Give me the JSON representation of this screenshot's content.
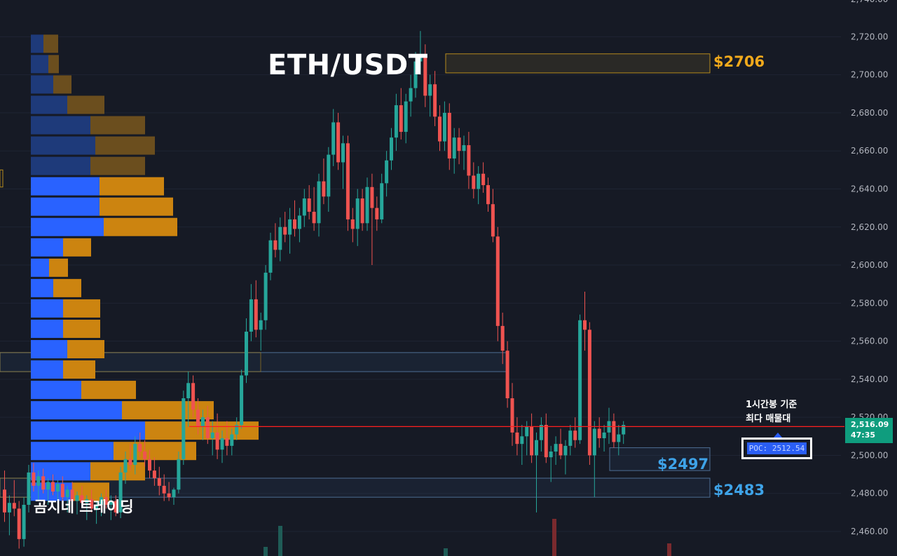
{
  "header": {
    "title": "ETH/USDT"
  },
  "watermark": "곰지네 트레이딩",
  "annotations": {
    "level_high": "$2706",
    "level_mid": "$2497",
    "level_low": "$2483",
    "note_line1": "1시간봉 기준",
    "note_line2": "최다 매물대"
  },
  "price_scale": {
    "current_price": "2,516.09",
    "countdown": "47:35",
    "poc_label": "POC: 2512.54"
  },
  "colors": {
    "background": "#161a25",
    "up": "#26a69a",
    "down": "#ef5350",
    "buy_volume": "#2962ff",
    "sell_volume": "#f0a91c",
    "poc_line": "#ff1f1f",
    "current_price_bg": "#0f9d7e"
  },
  "chart_data": {
    "type": "candlestick",
    "symbol": "ETH/USDT",
    "timeframe": "1h",
    "ylim": [
      2450,
      2745
    ],
    "y_ticks": [
      2460,
      2480,
      2500,
      2520,
      2540,
      2560,
      2580,
      2600,
      2620,
      2640,
      2660,
      2680,
      2700,
      2720
    ],
    "y_tick_labels": [
      "2,460.00",
      "2,480.00",
      "2,500.00",
      "2,520.00",
      "2,540.00",
      "2,560.00",
      "2,580.00",
      "2,600.00",
      "2,620.00",
      "2,640.00",
      "2,660.00",
      "2,680.00",
      "2,700.00",
      "2,720.00"
    ],
    "candles": [
      [
        2482,
        2492,
        2465,
        2470
      ],
      [
        2470,
        2479,
        2458,
        2475
      ],
      [
        2475,
        2487,
        2468,
        2472
      ],
      [
        2472,
        2476,
        2451,
        2456
      ],
      [
        2456,
        2478,
        2452,
        2474
      ],
      [
        2474,
        2495,
        2470,
        2491
      ],
      [
        2491,
        2496,
        2481,
        2484
      ],
      [
        2484,
        2492,
        2476,
        2489
      ],
      [
        2489,
        2493,
        2480,
        2482
      ],
      [
        2482,
        2488,
        2474,
        2486
      ],
      [
        2486,
        2490,
        2479,
        2481
      ],
      [
        2481,
        2487,
        2472,
        2485
      ],
      [
        2485,
        2489,
        2476,
        2478
      ],
      [
        2478,
        2484,
        2470,
        2482
      ],
      [
        2482,
        2486,
        2474,
        2476
      ],
      [
        2476,
        2481,
        2469,
        2479
      ],
      [
        2479,
        2484,
        2473,
        2475
      ],
      [
        2475,
        2479,
        2466,
        2477
      ],
      [
        2477,
        2482,
        2470,
        2472
      ],
      [
        2472,
        2476,
        2464,
        2474
      ],
      [
        2474,
        2480,
        2468,
        2478
      ],
      [
        2478,
        2482,
        2472,
        2474
      ],
      [
        2474,
        2479,
        2466,
        2476
      ],
      [
        2476,
        2479,
        2468,
        2470
      ],
      [
        2470,
        2494,
        2467,
        2491
      ],
      [
        2491,
        2502,
        2485,
        2498
      ],
      [
        2498,
        2506,
        2492,
        2495
      ],
      [
        2495,
        2510,
        2490,
        2506
      ],
      [
        2506,
        2512,
        2499,
        2502
      ],
      [
        2502,
        2508,
        2494,
        2498
      ],
      [
        2498,
        2503,
        2488,
        2492
      ],
      [
        2492,
        2499,
        2484,
        2488
      ],
      [
        2488,
        2494,
        2479,
        2484
      ],
      [
        2484,
        2490,
        2476,
        2480
      ],
      [
        2480,
        2486,
        2476,
        2478
      ],
      [
        2478,
        2483,
        2474,
        2482
      ],
      [
        2482,
        2502,
        2480,
        2498
      ],
      [
        2498,
        2534,
        2495,
        2530
      ],
      [
        2530,
        2544,
        2515,
        2538
      ],
      [
        2538,
        2542,
        2520,
        2524
      ],
      [
        2524,
        2530,
        2511,
        2515
      ],
      [
        2515,
        2524,
        2508,
        2520
      ],
      [
        2520,
        2526,
        2506,
        2509
      ],
      [
        2509,
        2518,
        2500,
        2512
      ],
      [
        2512,
        2522,
        2498,
        2503
      ],
      [
        2503,
        2513,
        2496,
        2509
      ],
      [
        2509,
        2518,
        2500,
        2505
      ],
      [
        2505,
        2514,
        2500,
        2511
      ],
      [
        2511,
        2520,
        2508,
        2516
      ],
      [
        2516,
        2545,
        2514,
        2542
      ],
      [
        2542,
        2572,
        2538,
        2565
      ],
      [
        2565,
        2590,
        2560,
        2582
      ],
      [
        2582,
        2592,
        2562,
        2566
      ],
      [
        2566,
        2575,
        2555,
        2571
      ],
      [
        2571,
        2600,
        2566,
        2596
      ],
      [
        2596,
        2617,
        2592,
        2613
      ],
      [
        2613,
        2622,
        2604,
        2608
      ],
      [
        2608,
        2625,
        2602,
        2620
      ],
      [
        2620,
        2628,
        2612,
        2616
      ],
      [
        2616,
        2630,
        2606,
        2624
      ],
      [
        2624,
        2634,
        2615,
        2619
      ],
      [
        2619,
        2630,
        2612,
        2626
      ],
      [
        2626,
        2640,
        2620,
        2635
      ],
      [
        2635,
        2642,
        2624,
        2628
      ],
      [
        2628,
        2641,
        2618,
        2622
      ],
      [
        2622,
        2648,
        2615,
        2644
      ],
      [
        2644,
        2656,
        2632,
        2636
      ],
      [
        2636,
        2662,
        2628,
        2658
      ],
      [
        2658,
        2682,
        2652,
        2675
      ],
      [
        2675,
        2680,
        2650,
        2654
      ],
      [
        2654,
        2668,
        2640,
        2664
      ],
      [
        2664,
        2668,
        2618,
        2624
      ],
      [
        2624,
        2630,
        2612,
        2619
      ],
      [
        2619,
        2640,
        2610,
        2635
      ],
      [
        2635,
        2640,
        2618,
        2622
      ],
      [
        2622,
        2646,
        2618,
        2641
      ],
      [
        2641,
        2648,
        2600,
        2630
      ],
      [
        2630,
        2636,
        2618,
        2624
      ],
      [
        2624,
        2648,
        2622,
        2643
      ],
      [
        2643,
        2660,
        2636,
        2655
      ],
      [
        2655,
        2672,
        2650,
        2667
      ],
      [
        2667,
        2690,
        2660,
        2684
      ],
      [
        2684,
        2693,
        2666,
        2670
      ],
      [
        2670,
        2690,
        2664,
        2686
      ],
      [
        2686,
        2700,
        2678,
        2693
      ],
      [
        2693,
        2712,
        2688,
        2707
      ],
      [
        2707,
        2723,
        2700,
        2709
      ],
      [
        2709,
        2716,
        2683,
        2689
      ],
      [
        2689,
        2700,
        2678,
        2695
      ],
      [
        2695,
        2702,
        2673,
        2678
      ],
      [
        2678,
        2684,
        2660,
        2665
      ],
      [
        2665,
        2686,
        2660,
        2680
      ],
      [
        2680,
        2685,
        2650,
        2656
      ],
      [
        2656,
        2672,
        2648,
        2667
      ],
      [
        2667,
        2672,
        2653,
        2660
      ],
      [
        2660,
        2668,
        2650,
        2663
      ],
      [
        2663,
        2670,
        2640,
        2647
      ],
      [
        2647,
        2654,
        2635,
        2640
      ],
      [
        2640,
        2652,
        2632,
        2648
      ],
      [
        2648,
        2654,
        2638,
        2642
      ],
      [
        2642,
        2646,
        2628,
        2632
      ],
      [
        2632,
        2640,
        2612,
        2615
      ],
      [
        2615,
        2620,
        2560,
        2568
      ],
      [
        2568,
        2575,
        2548,
        2555
      ],
      [
        2555,
        2560,
        2525,
        2530
      ],
      [
        2530,
        2538,
        2505,
        2512
      ],
      [
        2512,
        2520,
        2500,
        2506
      ],
      [
        2506,
        2516,
        2495,
        2510
      ],
      [
        2510,
        2518,
        2500,
        2515
      ],
      [
        2515,
        2522,
        2496,
        2500
      ],
      [
        2500,
        2512,
        2470,
        2508
      ],
      [
        2508,
        2520,
        2502,
        2516
      ],
      [
        2516,
        2522,
        2496,
        2499
      ],
      [
        2499,
        2505,
        2486,
        2502
      ],
      [
        2502,
        2510,
        2495,
        2506
      ],
      [
        2506,
        2514,
        2498,
        2500
      ],
      [
        2500,
        2508,
        2490,
        2505
      ],
      [
        2505,
        2516,
        2500,
        2513
      ],
      [
        2513,
        2520,
        2504,
        2508
      ],
      [
        2508,
        2574,
        2506,
        2571
      ],
      [
        2571,
        2586,
        2555,
        2566
      ],
      [
        2566,
        2570,
        2495,
        2500
      ],
      [
        2500,
        2518,
        2478,
        2514
      ],
      [
        2514,
        2520,
        2504,
        2509
      ],
      [
        2509,
        2516,
        2502,
        2512
      ],
      [
        2512,
        2525,
        2506,
        2518
      ],
      [
        2518,
        2522,
        2504,
        2507
      ],
      [
        2507,
        2516,
        2500,
        2511
      ],
      [
        2511,
        2518,
        2506,
        2516
      ]
    ],
    "volume_profile": [
      {
        "price": 2716.3,
        "buy": 18,
        "sell": 21
      },
      {
        "price": 2705.6,
        "buy": 25,
        "sell": 15
      },
      {
        "price": 2694.9,
        "buy": 32,
        "sell": 26
      },
      {
        "price": 2684.2,
        "buy": 52,
        "sell": 53
      },
      {
        "price": 2673.5,
        "buy": 85,
        "sell": 78
      },
      {
        "price": 2662.8,
        "buy": 92,
        "sell": 85
      },
      {
        "price": 2652.1,
        "buy": 85,
        "sell": 78
      },
      {
        "price": 2641.4,
        "buy": 98,
        "sell": 92
      },
      {
        "price": 2630.7,
        "buy": 98,
        "sell": 105
      },
      {
        "price": 2620.0,
        "buy": 104,
        "sell": 105
      },
      {
        "price": 2609.3,
        "buy": 46,
        "sell": 40
      },
      {
        "price": 2598.6,
        "buy": 26,
        "sell": 27
      },
      {
        "price": 2587.9,
        "buy": 32,
        "sell": 40
      },
      {
        "price": 2577.2,
        "buy": 46,
        "sell": 53
      },
      {
        "price": 2566.5,
        "buy": 46,
        "sell": 53
      },
      {
        "price": 2555.8,
        "buy": 52,
        "sell": 53
      },
      {
        "price": 2545.1,
        "buy": 46,
        "sell": 46
      },
      {
        "price": 2534.4,
        "buy": 72,
        "sell": 78
      },
      {
        "price": 2523.7,
        "buy": 130,
        "sell": 131
      },
      {
        "price": 2513.0,
        "buy": 163,
        "sell": 162
      },
      {
        "price": 2502.3,
        "buy": 118,
        "sell": 118
      },
      {
        "price": 2491.6,
        "buy": 85,
        "sell": 78
      },
      {
        "price": 2480.9,
        "buy": 59,
        "sell": 53
      }
    ],
    "poc": 2512.54,
    "current_price": 2516.09,
    "zones": [
      {
        "label": "$2706",
        "from": 2701,
        "to": 2711
      },
      {
        "label": "$2497",
        "from": 2492,
        "to": 2504
      },
      {
        "label": "$2483",
        "from": 2478,
        "to": 2488
      },
      {
        "label": "",
        "from": 2544,
        "to": 2554
      }
    ]
  }
}
